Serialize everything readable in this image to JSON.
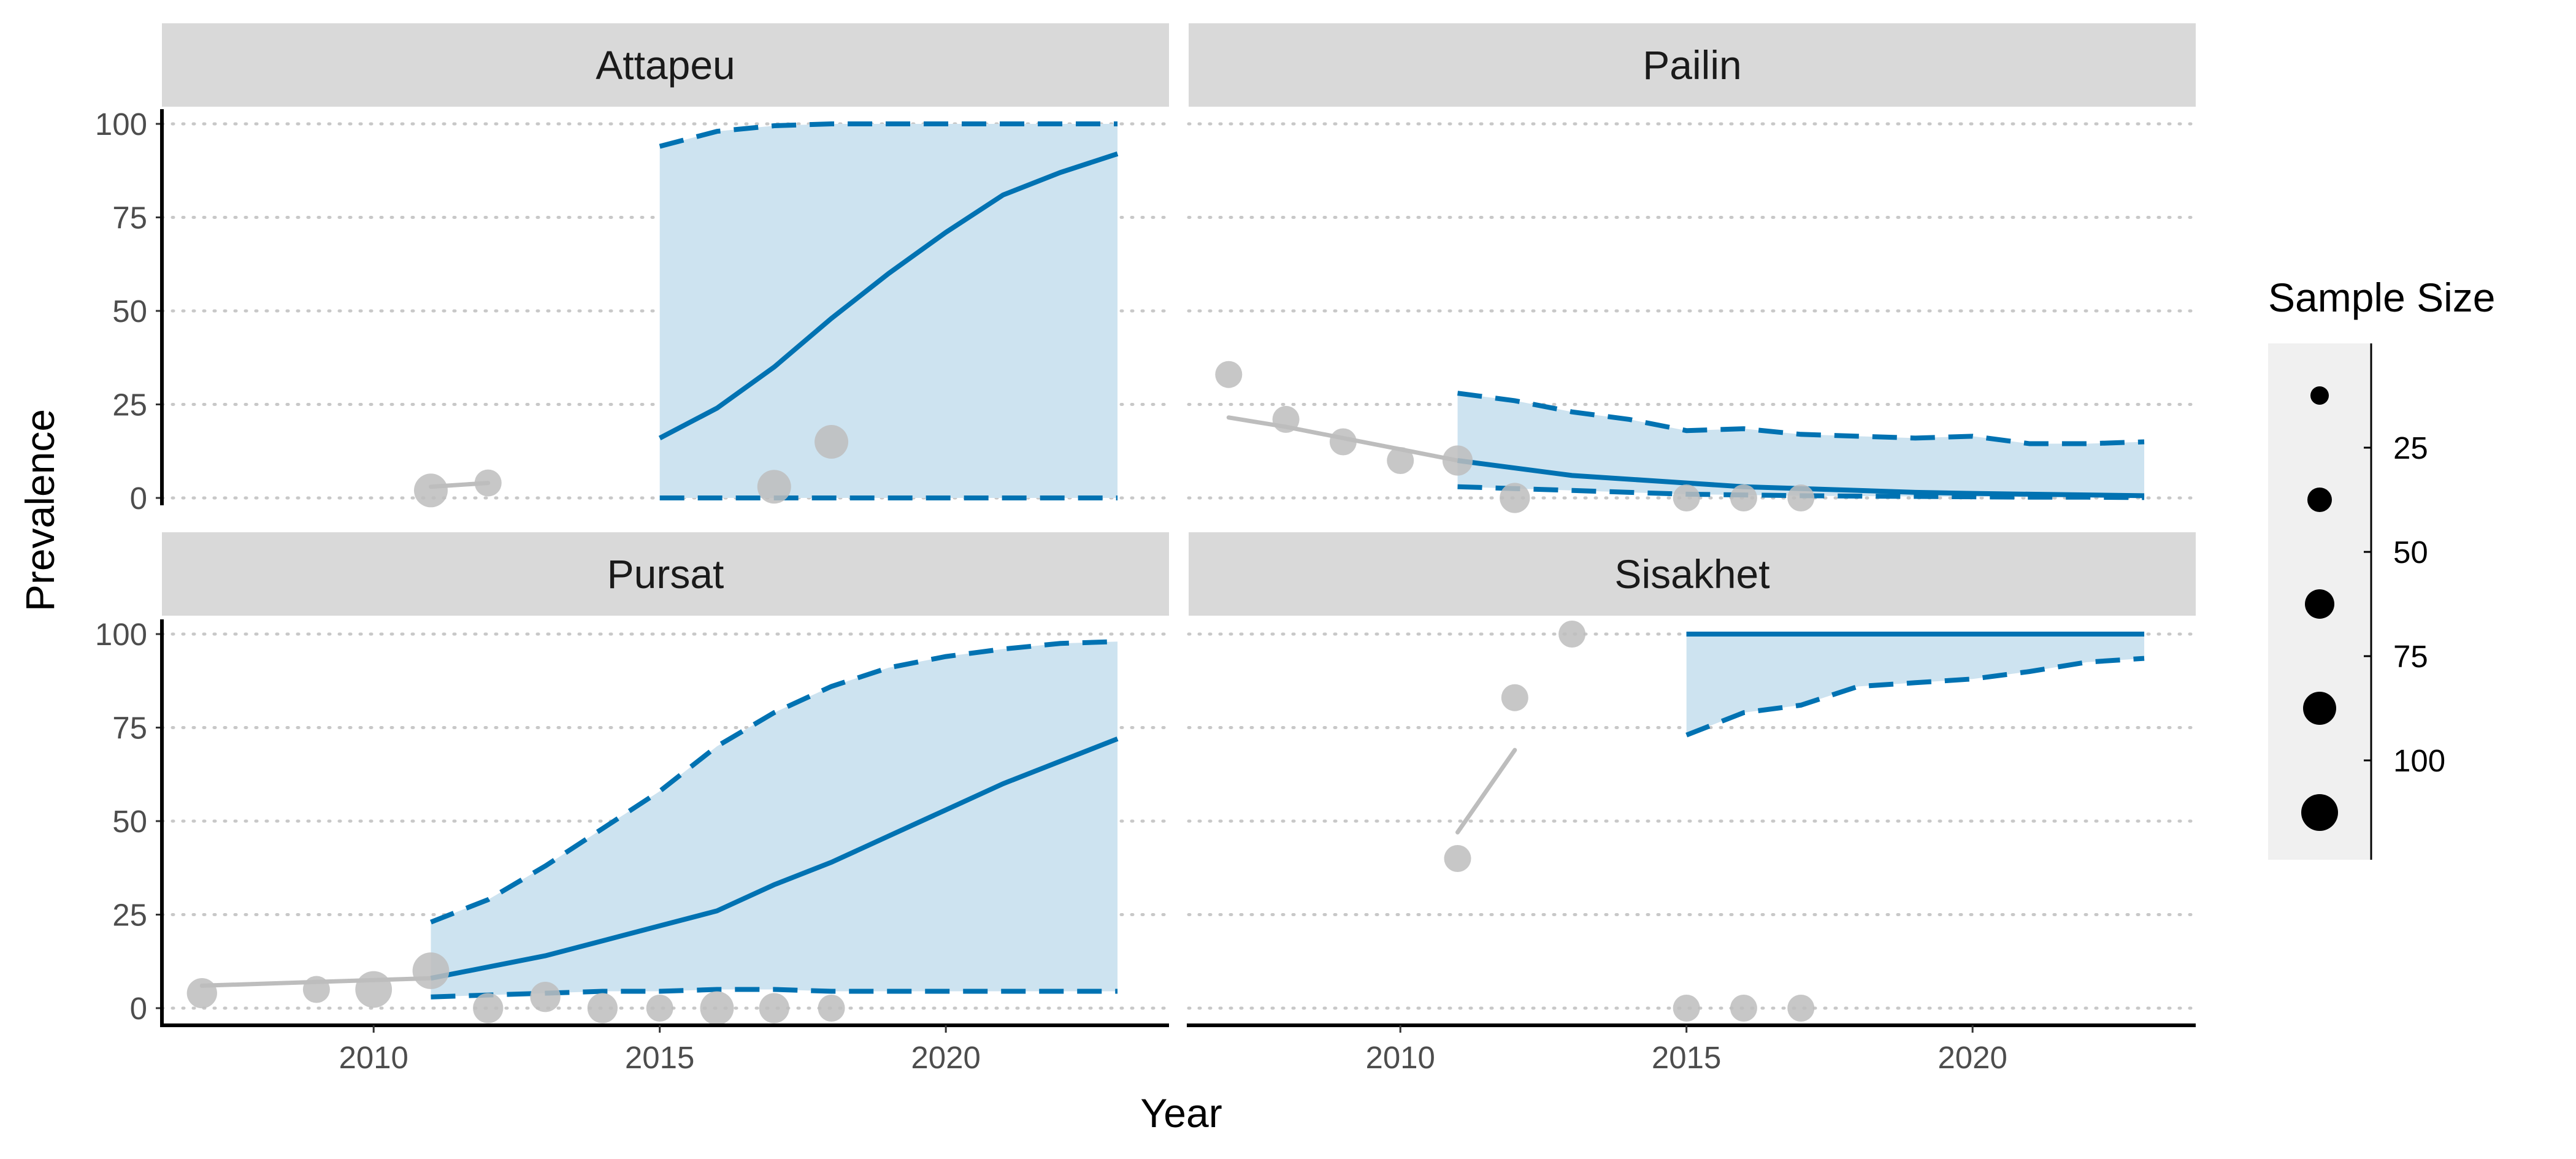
{
  "figure": {
    "ylabel": "Prevalence",
    "xlabel": "Year",
    "legend_title": "Sample Size",
    "legend_breaks": [
      "25",
      "50",
      "75",
      "100"
    ]
  },
  "colors": {
    "model": "#0072b2",
    "ribbon": "#cde3f0",
    "observed": "#bdbdbd",
    "strip": "#d9d9d9",
    "grid": "#c8c8c8",
    "legend_bg": "#f0f0f0"
  },
  "chart_data": [
    {
      "type": "line",
      "panel": "Attapeu",
      "xlim": [
        2006.3,
        2023.9
      ],
      "ylim": [
        0,
        100
      ],
      "yticks": [
        0,
        25,
        50,
        75,
        100
      ],
      "xticks": [],
      "model": {
        "x": [
          2015,
          2016,
          2017,
          2018,
          2019,
          2020,
          2021,
          2022,
          2023
        ],
        "median": [
          16,
          24,
          35,
          48,
          60,
          71,
          81,
          87,
          92
        ],
        "lower": [
          0,
          0,
          0,
          0,
          0,
          0,
          0,
          0,
          0
        ],
        "upper": [
          94,
          98,
          99.5,
          100,
          100,
          100,
          100,
          100,
          100
        ]
      },
      "observed": {
        "x": [
          2011,
          2012,
          2017,
          2018
        ],
        "y": [
          2,
          4,
          3,
          15
        ],
        "size": [
          60,
          25,
          60,
          60
        ]
      },
      "observed_line": [
        [
          [
            2011,
            3
          ],
          [
            2012,
            4
          ]
        ]
      ]
    },
    {
      "type": "line",
      "panel": "Pailin",
      "xlim": [
        2006.3,
        2023.9
      ],
      "ylim": [
        0,
        100
      ],
      "yticks": [
        0,
        25,
        50,
        75,
        100
      ],
      "xticks": [],
      "model": {
        "x": [
          2011,
          2012,
          2013,
          2014,
          2015,
          2016,
          2017,
          2018,
          2019,
          2020,
          2021,
          2022,
          2023
        ],
        "median": [
          10,
          8,
          6,
          5,
          4,
          3,
          2.5,
          2,
          1.5,
          1.2,
          1,
          0.8,
          0.6
        ],
        "lower": [
          3,
          2.5,
          2,
          1.5,
          1,
          0.8,
          0.6,
          0.5,
          0.4,
          0.3,
          0.2,
          0.2,
          0.1
        ],
        "upper": [
          28,
          26,
          23,
          21,
          18,
          18.5,
          17,
          16.5,
          16,
          16.5,
          14.5,
          14.5,
          15
        ]
      },
      "observed": {
        "x": [
          2007,
          2008,
          2009,
          2010,
          2011,
          2012,
          2015,
          2016,
          2017
        ],
        "y": [
          33,
          21,
          15,
          10,
          10,
          0,
          0,
          0,
          0
        ],
        "size": [
          25,
          25,
          25,
          25,
          40,
          40,
          25,
          25,
          25
        ]
      },
      "observed_line": [
        [
          [
            2007,
            21.5
          ],
          [
            2008,
            19
          ],
          [
            2009,
            16
          ],
          [
            2010,
            13
          ],
          [
            2011,
            10
          ]
        ]
      ]
    },
    {
      "type": "line",
      "panel": "Pursat",
      "xlim": [
        2006.3,
        2023.9
      ],
      "ylim": [
        0,
        100
      ],
      "yticks": [
        0,
        25,
        50,
        75,
        100
      ],
      "xticks": [
        "2010",
        "2015",
        "2020"
      ],
      "model": {
        "x": [
          2011,
          2012,
          2013,
          2014,
          2015,
          2016,
          2017,
          2018,
          2019,
          2020,
          2021,
          2022,
          2023
        ],
        "median": [
          8,
          11,
          14,
          18,
          22,
          26,
          33,
          39,
          46,
          53,
          60,
          66,
          72
        ],
        "lower": [
          3,
          3.5,
          4,
          4.5,
          4.5,
          5,
          5,
          4.5,
          4.5,
          4.5,
          4.5,
          4.5,
          4.5
        ],
        "upper": [
          23,
          29,
          38,
          48,
          58,
          70,
          79,
          86,
          91,
          94,
          96,
          97.5,
          98
        ]
      },
      "observed": {
        "x": [
          2007,
          2009,
          2010,
          2011,
          2012,
          2013,
          2014,
          2015,
          2016,
          2017,
          2018
        ],
        "y": [
          4,
          5,
          5,
          10,
          0,
          3,
          0,
          0,
          0,
          0,
          0
        ],
        "size": [
          40,
          25,
          80,
          80,
          40,
          40,
          40,
          25,
          60,
          40,
          25
        ]
      },
      "observed_line": [
        [
          [
            2007,
            6
          ],
          [
            2008,
            6.5
          ],
          [
            2009,
            7
          ],
          [
            2010,
            7.5
          ],
          [
            2011,
            8
          ]
        ]
      ]
    },
    {
      "type": "line",
      "panel": "Sisakhet",
      "xlim": [
        2006.3,
        2023.9
      ],
      "ylim": [
        0,
        100
      ],
      "yticks": [
        0,
        25,
        50,
        75,
        100
      ],
      "xticks": [
        "2010",
        "2015",
        "2020"
      ],
      "model": {
        "x": [
          2015,
          2016,
          2017,
          2018,
          2019,
          2020,
          2021,
          2022,
          2023
        ],
        "median": [
          100,
          100,
          100,
          100,
          100,
          100,
          100,
          100,
          100
        ],
        "lower": [
          73,
          79,
          81,
          86,
          87,
          88,
          90,
          92.5,
          93.5
        ],
        "upper": [
          100,
          100,
          100,
          100,
          100,
          100,
          100,
          100,
          100
        ]
      },
      "observed": {
        "x": [
          2011,
          2012,
          2013,
          2015,
          2016,
          2017
        ],
        "y": [
          40,
          83,
          100,
          0,
          0,
          0
        ],
        "size": [
          25,
          25,
          25,
          25,
          25,
          25
        ]
      },
      "observed_line": [
        [
          [
            2011,
            47
          ],
          [
            2012,
            69
          ]
        ]
      ]
    }
  ]
}
